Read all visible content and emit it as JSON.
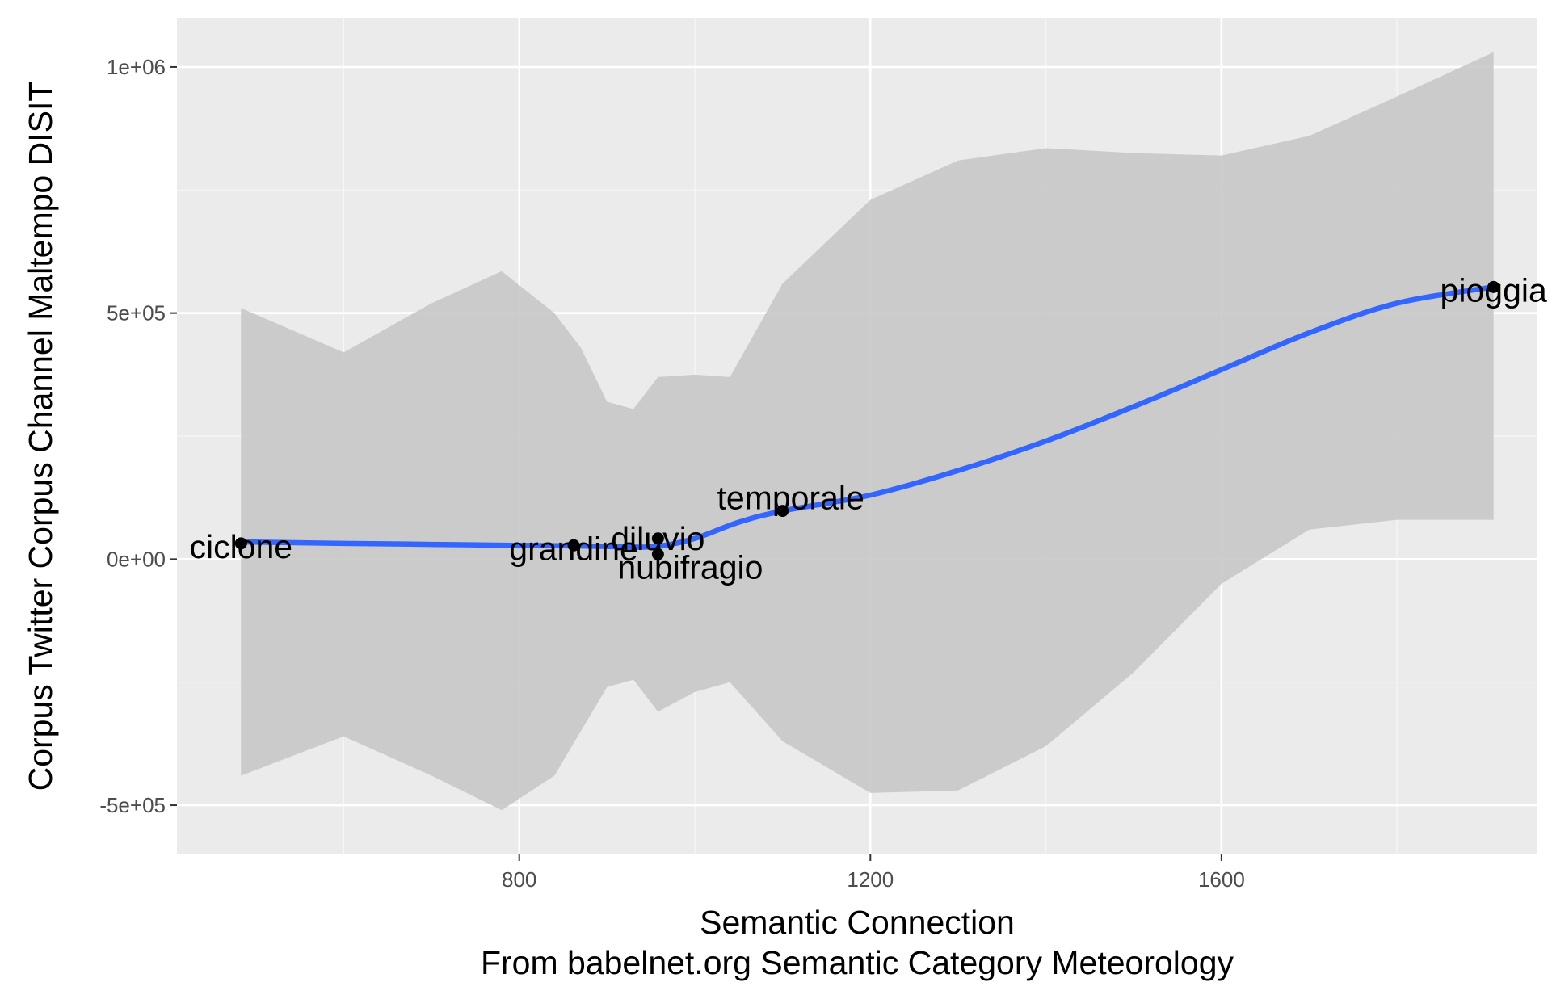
{
  "colors": {
    "panel_bg": "#ebebeb",
    "grid_major": "#ffffff",
    "ribbon": "#c8c8c8",
    "smooth_line": "#3366ff",
    "point": "#000000",
    "label_text": "#000000"
  },
  "chart_data": {
    "type": "scatter",
    "title": "",
    "xlabel": "Semantic Connection",
    "xlabel_sub": "From babelnet.org Semantic Category Meteorology",
    "ylabel": "Corpus Twitter Corpus Channel Maltempo DISIT",
    "xlim": [
      410,
      1960
    ],
    "ylim": [
      -600000,
      1100000
    ],
    "x_ticks": [
      {
        "value": 800,
        "label": "800"
      },
      {
        "value": 1200,
        "label": "1200"
      },
      {
        "value": 1600,
        "label": "1600"
      }
    ],
    "x_minor_ticks": [
      600,
      1000,
      1400,
      1800
    ],
    "y_ticks": [
      {
        "value": -500000,
        "label": "-5e+05"
      },
      {
        "value": 0,
        "label": "0e+00"
      },
      {
        "value": 500000,
        "label": "5e+05"
      },
      {
        "value": 1000000,
        "label": "1e+06"
      }
    ],
    "y_minor_ticks": [
      -250000,
      250000,
      750000
    ],
    "grid": true,
    "points": [
      {
        "label": "ciclone",
        "x": 483,
        "y": 32000
      },
      {
        "label": "grandine",
        "x": 862,
        "y": 28000
      },
      {
        "label": "diluvio",
        "x": 958,
        "y": 42000
      },
      {
        "label": "nubifragio",
        "x": 958,
        "y": 10000
      },
      {
        "label": "temporale",
        "x": 1100,
        "y": 98000
      },
      {
        "label": "pioggia",
        "x": 1910,
        "y": 553000
      }
    ],
    "smooth_fit": [
      {
        "x": 483,
        "y": 35000
      },
      {
        "x": 600,
        "y": 32000
      },
      {
        "x": 700,
        "y": 30000
      },
      {
        "x": 800,
        "y": 28000
      },
      {
        "x": 862,
        "y": 27000
      },
      {
        "x": 920,
        "y": 25000
      },
      {
        "x": 958,
        "y": 26000
      },
      {
        "x": 1000,
        "y": 42000
      },
      {
        "x": 1050,
        "y": 75000
      },
      {
        "x": 1100,
        "y": 98000
      },
      {
        "x": 1200,
        "y": 130000
      },
      {
        "x": 1300,
        "y": 180000
      },
      {
        "x": 1400,
        "y": 240000
      },
      {
        "x": 1500,
        "y": 310000
      },
      {
        "x": 1600,
        "y": 385000
      },
      {
        "x": 1700,
        "y": 460000
      },
      {
        "x": 1800,
        "y": 520000
      },
      {
        "x": 1910,
        "y": 553000
      }
    ],
    "confidence_band": [
      {
        "x": 483,
        "upper": 510000,
        "lower": -440000
      },
      {
        "x": 600,
        "upper": 420000,
        "lower": -360000
      },
      {
        "x": 700,
        "upper": 520000,
        "lower": -440000
      },
      {
        "x": 780,
        "upper": 585000,
        "lower": -510000
      },
      {
        "x": 840,
        "upper": 500000,
        "lower": -440000
      },
      {
        "x": 870,
        "upper": 430000,
        "lower": -350000
      },
      {
        "x": 900,
        "upper": 320000,
        "lower": -260000
      },
      {
        "x": 930,
        "upper": 305000,
        "lower": -245000
      },
      {
        "x": 958,
        "upper": 370000,
        "lower": -310000
      },
      {
        "x": 1000,
        "upper": 375000,
        "lower": -270000
      },
      {
        "x": 1040,
        "upper": 370000,
        "lower": -250000
      },
      {
        "x": 1100,
        "upper": 560000,
        "lower": -370000
      },
      {
        "x": 1200,
        "upper": 730000,
        "lower": -475000
      },
      {
        "x": 1300,
        "upper": 810000,
        "lower": -470000
      },
      {
        "x": 1400,
        "upper": 835000,
        "lower": -380000
      },
      {
        "x": 1500,
        "upper": 825000,
        "lower": -230000
      },
      {
        "x": 1600,
        "upper": 820000,
        "lower": -50000
      },
      {
        "x": 1700,
        "upper": 860000,
        "lower": 60000
      },
      {
        "x": 1800,
        "upper": 940000,
        "lower": 80000
      },
      {
        "x": 1910,
        "upper": 1030000,
        "lower": 80000
      }
    ]
  }
}
